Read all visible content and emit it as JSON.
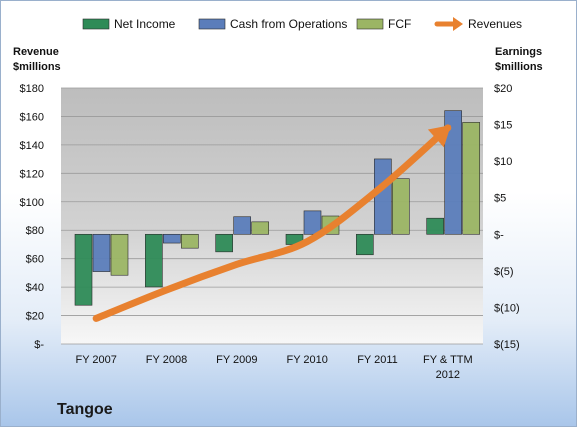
{
  "chart_data": {
    "type": "bar",
    "title": "Tangoe",
    "categories": [
      [
        "FY 2007"
      ],
      [
        "FY 2008"
      ],
      [
        "FY 2009"
      ],
      [
        "FY 2010"
      ],
      [
        "FY 2011"
      ],
      [
        "FY & TTM",
        "2012"
      ]
    ],
    "left_axis": {
      "label": [
        "Revenue",
        "$millions"
      ],
      "ylim": [
        0,
        180
      ],
      "ticks": [
        0,
        20,
        40,
        60,
        80,
        100,
        120,
        140,
        160,
        180
      ],
      "tick_labels": [
        "$-",
        "$20",
        "$40",
        "$60",
        "$80",
        "$100",
        "$120",
        "$140",
        "$160",
        "$180"
      ]
    },
    "right_axis": {
      "label": [
        "Earnings",
        "$millions"
      ],
      "ylim": [
        -15,
        20
      ],
      "ticks": [
        -15,
        -10,
        -5,
        0,
        5,
        10,
        15,
        20
      ],
      "tick_labels": [
        "$(15)",
        "$(10)",
        "$(5)",
        "$-",
        "$5",
        "$10",
        "$15",
        "$20"
      ]
    },
    "series": [
      {
        "name": "Net Income",
        "type": "bar",
        "axis": "right",
        "color": "#2e8b57",
        "values": [
          -9.7,
          -7.2,
          -2.4,
          -1.4,
          -2.8,
          2.2
        ]
      },
      {
        "name": "Cash from Operations",
        "type": "bar",
        "axis": "right",
        "color": "#5b7dba",
        "values": [
          -5.1,
          -1.2,
          2.4,
          3.2,
          10.3,
          16.9
        ]
      },
      {
        "name": "FCF",
        "type": "bar",
        "axis": "right",
        "color": "#9bb564",
        "values": [
          -5.6,
          -1.9,
          1.7,
          2.5,
          7.6,
          15.3
        ]
      },
      {
        "name": "Revenues",
        "type": "line",
        "axis": "left",
        "color": "#e8812f",
        "values": [
          18,
          38,
          56,
          72,
          108,
          152
        ]
      }
    ],
    "legend_position": "top",
    "grid": true
  }
}
